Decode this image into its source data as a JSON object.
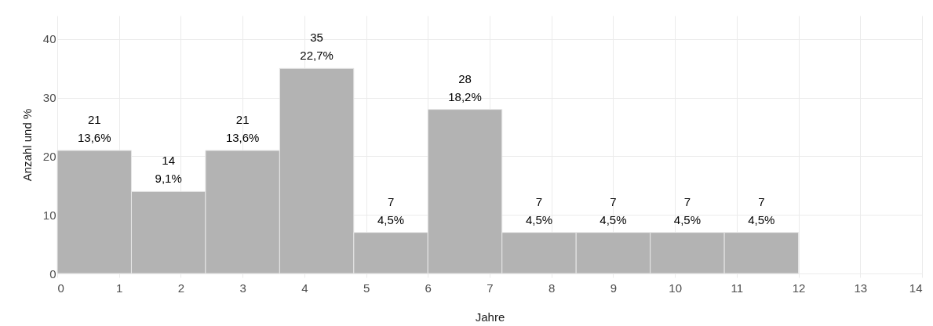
{
  "chart_data": {
    "type": "histogram",
    "xlabel": "Jahre",
    "ylabel": "Anzahl und %",
    "bins": [
      0,
      1.2,
      2.4,
      3.6,
      4.8,
      6,
      7.2,
      8.4,
      9.6,
      10.8,
      12
    ],
    "values": [
      21,
      14,
      21,
      35,
      7,
      28,
      7,
      7,
      7,
      7
    ],
    "value_labels": [
      "21\n13,6%",
      "14\n9,1%",
      "21\n13,6%",
      "35\n22,7%",
      "7\n4,5%",
      "28\n18,2%",
      "7\n4,5%",
      "7\n4,5%",
      "7\n4,5%",
      "7\n4,5%"
    ],
    "color": "#b3b3b3",
    "xlim": [
      0,
      14
    ],
    "xticks": [
      0,
      1,
      2,
      3,
      4,
      5,
      6,
      7,
      8,
      9,
      10,
      11,
      12,
      13,
      14
    ],
    "ylim": [
      0,
      44
    ],
    "yticks": [
      0,
      10,
      20,
      30,
      40
    ],
    "grid": true
  }
}
